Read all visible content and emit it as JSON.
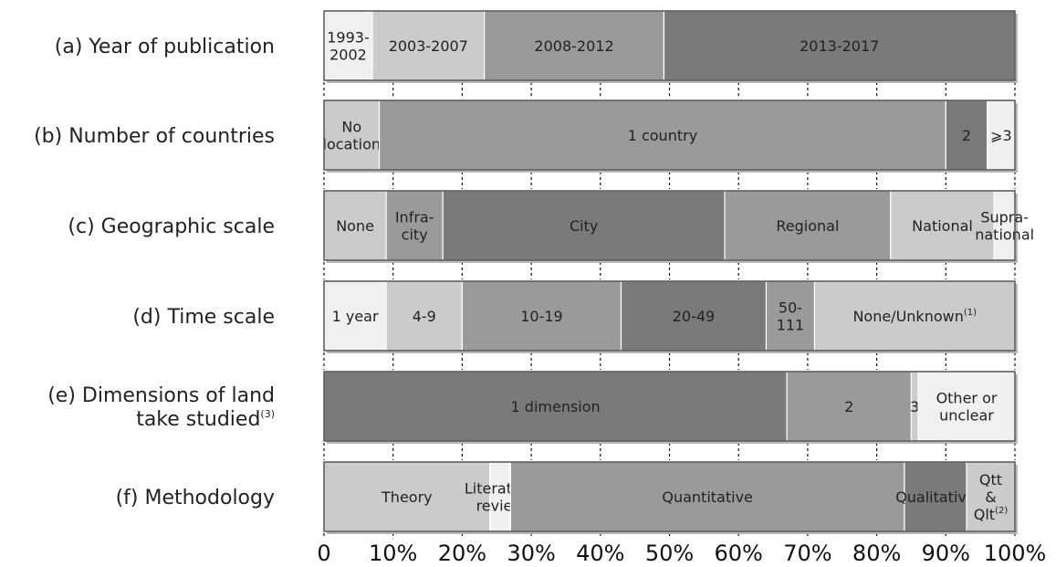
{
  "chart_data": {
    "type": "bar",
    "orientation": "horizontal",
    "stacked": true,
    "x_axis": {
      "ticks": [
        "0",
        "10%",
        "20%",
        "30%",
        "40%",
        "50%",
        "60%",
        "70%",
        "80%",
        "90%",
        "100%"
      ],
      "range": [
        0,
        100
      ]
    },
    "rows": [
      {
        "label_lines": [
          "(a) Year of publication"
        ],
        "segments": [
          {
            "lines": [
              "1993-",
              "2002"
            ],
            "value": 7,
            "color": "#f0f0f0"
          },
          {
            "lines": [
              "2003-2007"
            ],
            "value": 16.2,
            "color": "#cbcbcb"
          },
          {
            "lines": [
              "2008-2012"
            ],
            "value": 26,
            "color": "#9a9a9a"
          },
          {
            "lines": [
              "2013-2017"
            ],
            "value": 50.8,
            "color": "#7a7a7a"
          }
        ]
      },
      {
        "label_lines": [
          "(b) Number of countries"
        ],
        "segments": [
          {
            "lines": [
              "No",
              "location"
            ],
            "value": 8,
            "color": "#cbcbcb"
          },
          {
            "lines": [
              "1 country"
            ],
            "value": 82,
            "color": "#9a9a9a"
          },
          {
            "lines": [
              "2"
            ],
            "value": 6,
            "color": "#7a7a7a"
          },
          {
            "lines": [
              "⩾3"
            ],
            "value": 4,
            "color": "#f0f0f0"
          }
        ]
      },
      {
        "label_lines": [
          "(c) Geographic scale"
        ],
        "segments": [
          {
            "lines": [
              "None"
            ],
            "value": 9,
            "color": "#cbcbcb"
          },
          {
            "lines": [
              "Infra-",
              "city"
            ],
            "value": 8.2,
            "color": "#9a9a9a"
          },
          {
            "lines": [
              "City"
            ],
            "value": 40.8,
            "color": "#7a7a7a"
          },
          {
            "lines": [
              "Regional"
            ],
            "value": 24,
            "color": "#9a9a9a"
          },
          {
            "lines": [
              "National"
            ],
            "value": 15,
            "color": "#cbcbcb"
          },
          {
            "lines": [
              "Supra-",
              "national"
            ],
            "value": 3,
            "color": "#f0f0f0"
          }
        ]
      },
      {
        "label_lines": [
          "(d) Time scale"
        ],
        "segments": [
          {
            "lines": [
              "1 year"
            ],
            "value": 9,
            "color": "#f0f0f0"
          },
          {
            "lines": [
              "4-9"
            ],
            "value": 11,
            "color": "#cbcbcb"
          },
          {
            "lines": [
              "10-19"
            ],
            "value": 23,
            "color": "#9a9a9a"
          },
          {
            "lines": [
              "20-49"
            ],
            "value": 21,
            "color": "#7a7a7a"
          },
          {
            "lines": [
              "50-",
              "111"
            ],
            "value": 7,
            "color": "#9a9a9a"
          },
          {
            "lines": [
              "None/Unknown"
            ],
            "sup": "(1)",
            "value": 29,
            "color": "#cbcbcb"
          }
        ]
      },
      {
        "label_lines": [
          "(e) Dimensions of land",
          "take studied"
        ],
        "label_sup": "(3)",
        "segments": [
          {
            "lines": [
              "1 dimension"
            ],
            "value": 67,
            "color": "#7a7a7a"
          },
          {
            "lines": [
              "2"
            ],
            "value": 18,
            "color": "#9a9a9a"
          },
          {
            "lines": [
              "3"
            ],
            "value": 1,
            "color": "#cbcbcb"
          },
          {
            "lines": [
              "Other or",
              "unclear"
            ],
            "value": 14,
            "color": "#f0f0f0"
          }
        ]
      },
      {
        "label_lines": [
          "(f) Methodology"
        ],
        "segments": [
          {
            "lines": [
              "Theory"
            ],
            "value": 24,
            "color": "#cbcbcb"
          },
          {
            "lines": [
              "Literature",
              "review"
            ],
            "value": 3,
            "color": "#f0f0f0"
          },
          {
            "lines": [
              "Quantitative"
            ],
            "value": 57,
            "color": "#9a9a9a"
          },
          {
            "lines": [
              "Qualitative"
            ],
            "value": 9,
            "color": "#7a7a7a"
          },
          {
            "lines": [
              "Qtt",
              "&",
              "Qlt"
            ],
            "sup": "(2)",
            "value": 7,
            "color": "#cbcbcb"
          }
        ]
      }
    ]
  }
}
